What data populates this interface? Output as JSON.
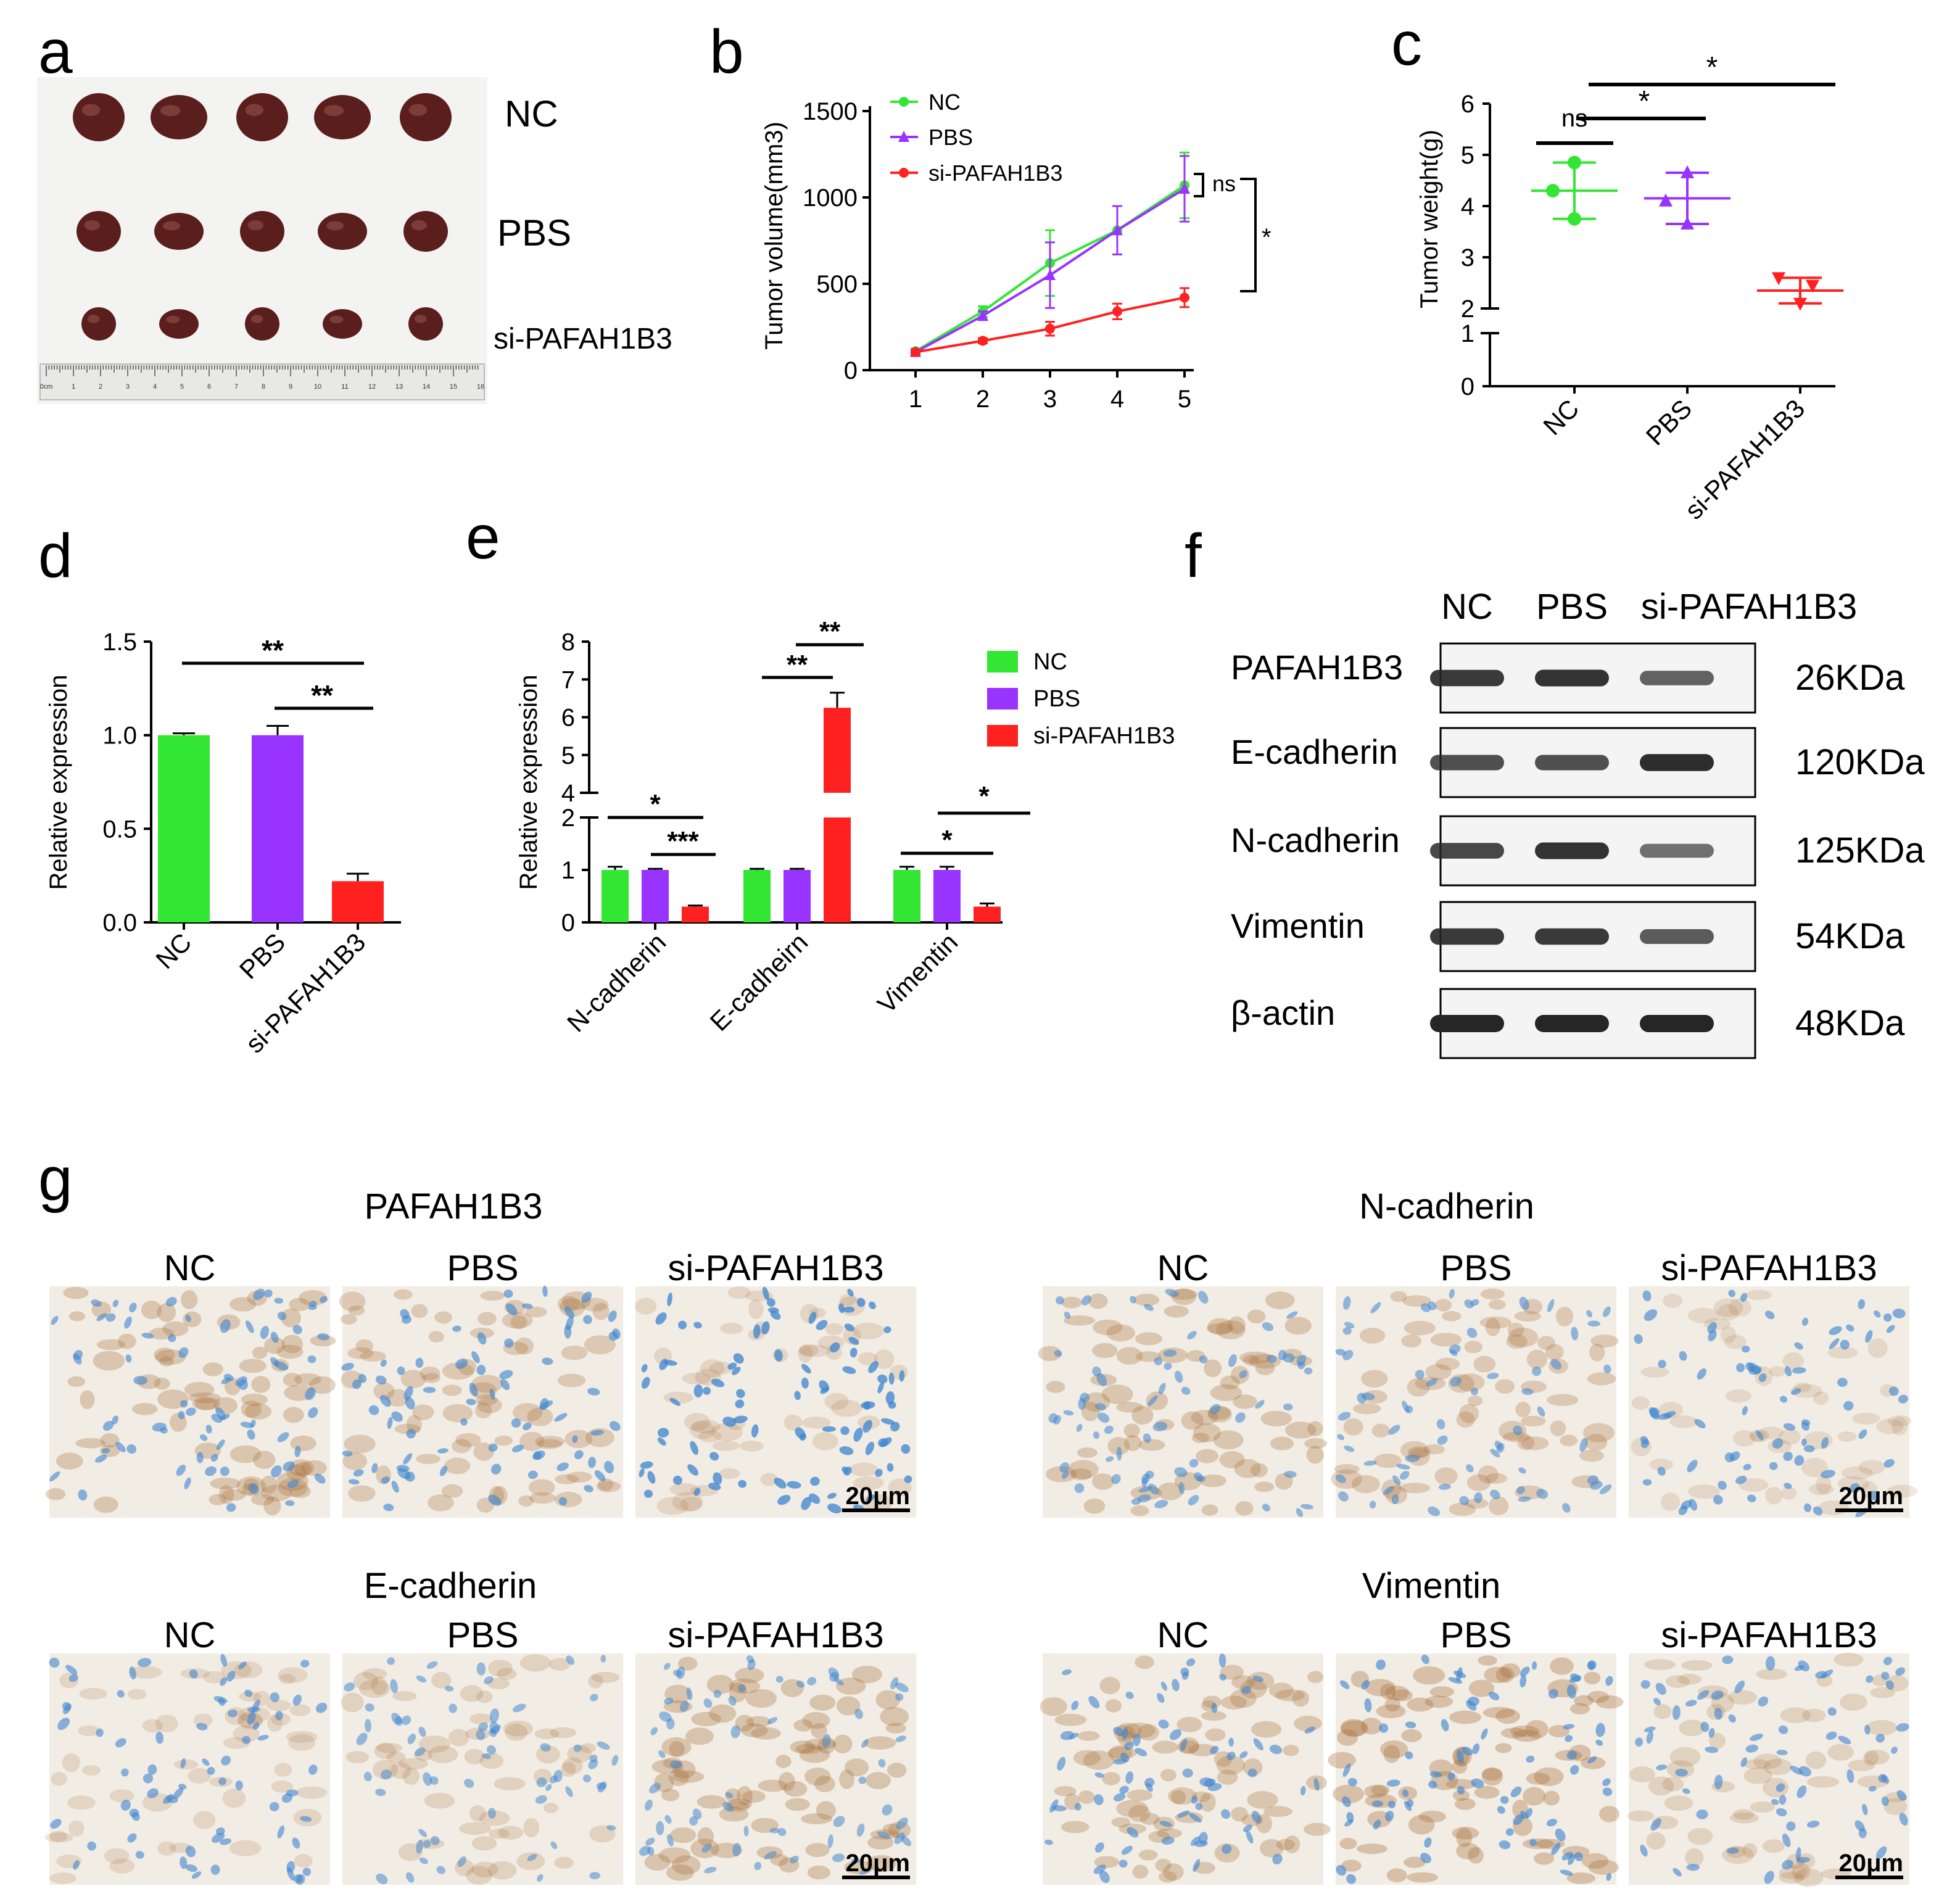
{
  "panel_letters": {
    "a": "a",
    "b": "b",
    "c": "c",
    "d": "d",
    "e": "e",
    "f": "f",
    "g": "g"
  },
  "colors": {
    "NC": "#33e633",
    "PBS": "#9933ff",
    "si": "#ff2020",
    "tumor": "#5a1f1c",
    "band": "#262626",
    "ihc_blue": "#3f86d0",
    "ihc_brown": "#a8703a",
    "photo_bg": "#f2f2f0"
  },
  "groups": [
    "NC",
    "PBS",
    "si-PAFAH1B3"
  ],
  "panel_a": {
    "row_labels": [
      "NC",
      "PBS",
      "si-PAFAH1B3"
    ],
    "ruler_numbers": [
      "0cm",
      "1",
      "2",
      "3",
      "4",
      "5",
      "6",
      "7",
      "8",
      "9",
      "10",
      "11",
      "12",
      "13",
      "14",
      "15",
      "16"
    ]
  },
  "chart_data": [
    {
      "panel": "b",
      "type": "line",
      "title": "",
      "xlabel": "",
      "ylabel": "Tumor volume(mm3)",
      "x": [
        1,
        2,
        3,
        4,
        5
      ],
      "ylim": [
        0,
        1500
      ],
      "yticks": [
        0,
        500,
        1000,
        1500
      ],
      "series": [
        {
          "name": "NC",
          "values": [
            110,
            340,
            620,
            810,
            1070
          ],
          "errors": [
            15,
            30,
            190,
            140,
            190
          ],
          "marker": "circle"
        },
        {
          "name": "PBS",
          "values": [
            105,
            315,
            550,
            810,
            1050
          ],
          "errors": [
            15,
            25,
            190,
            140,
            190
          ],
          "marker": "triangle"
        },
        {
          "name": "si-PAFAH1B3",
          "values": [
            105,
            170,
            240,
            340,
            420
          ],
          "errors": [
            10,
            15,
            40,
            45,
            55
          ],
          "marker": "circle"
        }
      ],
      "annotations": [
        "ns",
        "*"
      ]
    },
    {
      "panel": "c",
      "type": "scatter",
      "ylabel": "Tumor weight(g)",
      "categories": [
        "NC",
        "PBS",
        "si-PAFAH1B3"
      ],
      "ylim": [
        0,
        6
      ],
      "yticks": [
        0,
        1,
        2,
        3,
        4,
        5,
        6
      ],
      "axis_break": [
        1,
        2
      ],
      "points": [
        [
          4.85,
          4.3,
          3.75
        ],
        [
          4.65,
          4.1,
          3.65
        ],
        [
          2.6,
          2.45,
          2.1
        ]
      ],
      "means": [
        4.3,
        4.15,
        2.35
      ],
      "sd": [
        0.55,
        0.5,
        0.25
      ],
      "annotations": [
        "ns",
        "*",
        "*"
      ]
    },
    {
      "panel": "d",
      "type": "bar",
      "ylabel": "Relative expression",
      "categories": [
        "NC",
        "PBS",
        "si-PAFAH1B3"
      ],
      "values": [
        1.0,
        1.0,
        0.22
      ],
      "errors": [
        0.01,
        0.05,
        0.04
      ],
      "ylim": [
        0,
        1.5
      ],
      "yticks": [
        "0.0",
        "0.5",
        "1.0",
        "1.5"
      ],
      "annotations": [
        "**",
        "**"
      ]
    },
    {
      "panel": "e",
      "type": "bar",
      "ylabel": "Relative expression",
      "categories": [
        "N-cadherin",
        "E-cadheirn",
        "Vimentin"
      ],
      "series": [
        {
          "name": "NC",
          "values": [
            1.0,
            1.0,
            1.0
          ],
          "errors": [
            0.06,
            0.02,
            0.06
          ]
        },
        {
          "name": "PBS",
          "values": [
            1.0,
            1.0,
            1.0
          ],
          "errors": [
            0.02,
            0.02,
            0.06
          ]
        },
        {
          "name": "si-PAFAH1B3",
          "values": [
            0.3,
            6.25,
            0.3
          ],
          "errors": [
            0.02,
            0.4,
            0.06
          ]
        }
      ],
      "yticks_low": [
        0,
        1,
        2
      ],
      "yticks_high": [
        4,
        5,
        6,
        7,
        8
      ],
      "axis_break": [
        2,
        4
      ],
      "annotations": [
        "*",
        "***",
        "**",
        "**",
        "*",
        "*"
      ]
    }
  ],
  "panel_f": {
    "columns": [
      "NC",
      "PBS",
      "si-PAFAH1B3"
    ],
    "rows": [
      {
        "protein": "PAFAH1B3",
        "size": "26KDa",
        "intensity": [
          0.85,
          0.9,
          0.55
        ]
      },
      {
        "protein": "E-cadherin",
        "size": "120KDa",
        "intensity": [
          0.7,
          0.7,
          0.95
        ]
      },
      {
        "protein": "N-cadherin",
        "size": "125KDa",
        "intensity": [
          0.75,
          0.9,
          0.45
        ]
      },
      {
        "protein": "Vimentin",
        "size": "54KDa",
        "intensity": [
          0.85,
          0.85,
          0.6
        ]
      },
      {
        "protein": "β-actin",
        "size": "48KDa",
        "intensity": [
          1.0,
          1.0,
          1.0
        ]
      }
    ]
  },
  "panel_g": {
    "blocks": [
      {
        "title": "PAFAH1B3",
        "labels": [
          "NC",
          "PBS",
          "si-PAFAH1B3"
        ],
        "stain": [
          0.55,
          0.5,
          0.2
        ],
        "blue": [
          0.5,
          0.55,
          0.85
        ]
      },
      {
        "title": "N-cadherin",
        "labels": [
          "NC",
          "PBS",
          "si-PAFAH1B3"
        ],
        "stain": [
          0.55,
          0.5,
          0.15
        ],
        "blue": [
          0.4,
          0.4,
          0.55
        ]
      },
      {
        "title": "E-cadherin",
        "labels": [
          "NC",
          "PBS",
          "si-PAFAH1B3"
        ],
        "stain": [
          0.2,
          0.3,
          0.6
        ],
        "blue": [
          0.5,
          0.35,
          0.35
        ]
      },
      {
        "title": "Vimentin",
        "labels": [
          "NC",
          "PBS",
          "si-PAFAH1B3"
        ],
        "stain": [
          0.55,
          0.65,
          0.3
        ],
        "blue": [
          0.5,
          0.55,
          0.5
        ]
      }
    ],
    "scale_bar": "20μm"
  }
}
